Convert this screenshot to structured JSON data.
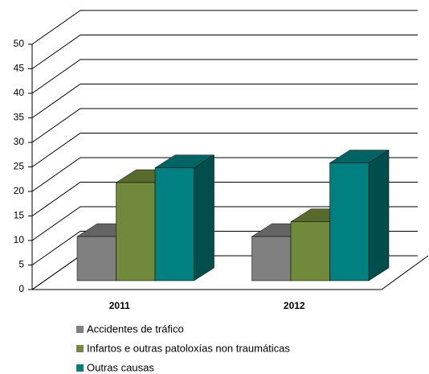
{
  "chart_data": {
    "type": "bar3d",
    "categories": [
      "2011",
      "2012"
    ],
    "series": [
      {
        "name": "Accidentes de tráfico",
        "color": "#808080",
        "values": [
          9,
          9
        ]
      },
      {
        "name": "Infartos e outras patoloxías non traumáticas",
        "color": "#71893a",
        "values": [
          20,
          12
        ]
      },
      {
        "name": "Outras causas",
        "color": "#008080",
        "values": [
          23,
          24
        ]
      }
    ],
    "ylim": [
      0,
      50
    ],
    "yticks": [
      0,
      5,
      10,
      15,
      20,
      25,
      30,
      35,
      40,
      45,
      50
    ],
    "grid": true,
    "legend": "bottom"
  }
}
